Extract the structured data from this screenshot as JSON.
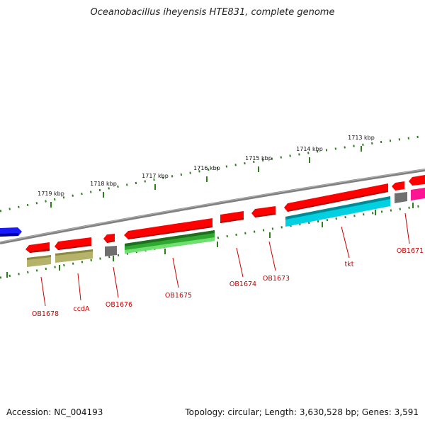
{
  "title": "Oceanobacillus iheyensis HTE831, complete genome",
  "footer": {
    "accession": "Accession: NC_004193",
    "stats": "Topology: circular; Length: 3,630,528 bp; Genes: 3,591"
  },
  "scale": {
    "ticks": [
      "1719 kbp",
      "1718 kbp",
      "1717 kbp",
      "1716 kbp",
      "1715 kbp",
      "1714 kbp",
      "1713 kbp"
    ]
  },
  "colors": {
    "backbone": "#7f7f7f",
    "cds": "#ff0000",
    "gene_label": "#cc0000",
    "tick": "#2e7d1f",
    "olive": "#b5b36a",
    "gray": "#6f6f6f",
    "green": "#2fa82f",
    "cyan": "#00d0e0",
    "magenta": "#ff1493",
    "blue": "#1a1aff"
  },
  "genes": [
    {
      "label": "OB1678"
    },
    {
      "label": "ccdA"
    },
    {
      "label": "OB1676"
    },
    {
      "label": "OB1675"
    },
    {
      "label": "OB1674"
    },
    {
      "label": "OB1673"
    },
    {
      "label": "tkt"
    },
    {
      "label": "OB1671"
    }
  ]
}
